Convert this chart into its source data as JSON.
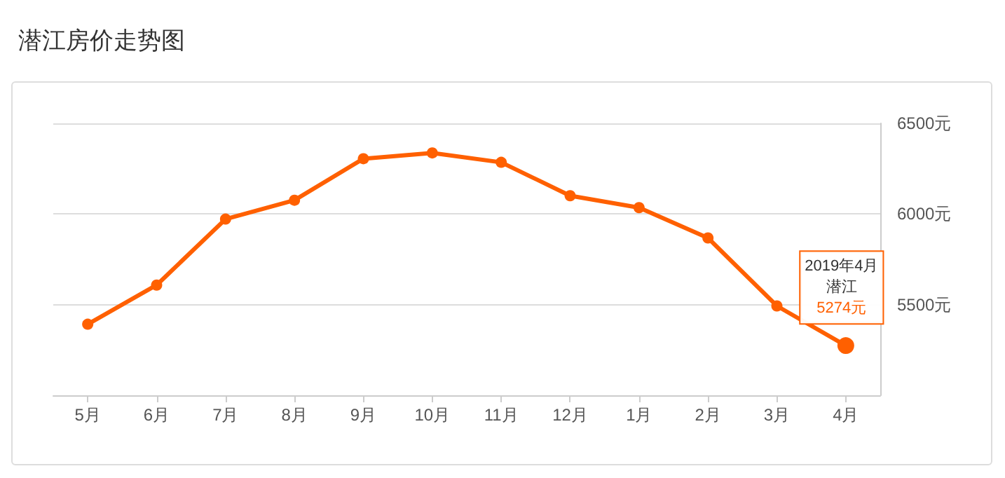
{
  "chart_data": {
    "type": "line",
    "title": "潜江房价走势图",
    "categories": [
      "5月",
      "6月",
      "7月",
      "8月",
      "9月",
      "10月",
      "11月",
      "12月",
      "1月",
      "2月",
      "3月",
      "4月"
    ],
    "series": [
      {
        "name": "潜江",
        "color": "#ff6000",
        "values": [
          5392,
          5608,
          5972,
          6076,
          6305,
          6337,
          6285,
          6101,
          6035,
          5868,
          5493,
          5274
        ],
        "value_labels": [
          null,
          null,
          null,
          null,
          null,
          null,
          null,
          null,
          null,
          null,
          null,
          "5274元"
        ]
      }
    ],
    "annotations": [
      "2019年4月"
    ],
    "ylim": [
      5000,
      6500
    ],
    "yticks": [
      {
        "value": 5500,
        "label": "5500元"
      },
      {
        "value": 6000,
        "label": "6000元"
      },
      {
        "value": 6500,
        "label": "6500元"
      }
    ],
    "grid": "y",
    "legend": false,
    "marker": "circle",
    "line_style": "solid"
  }
}
